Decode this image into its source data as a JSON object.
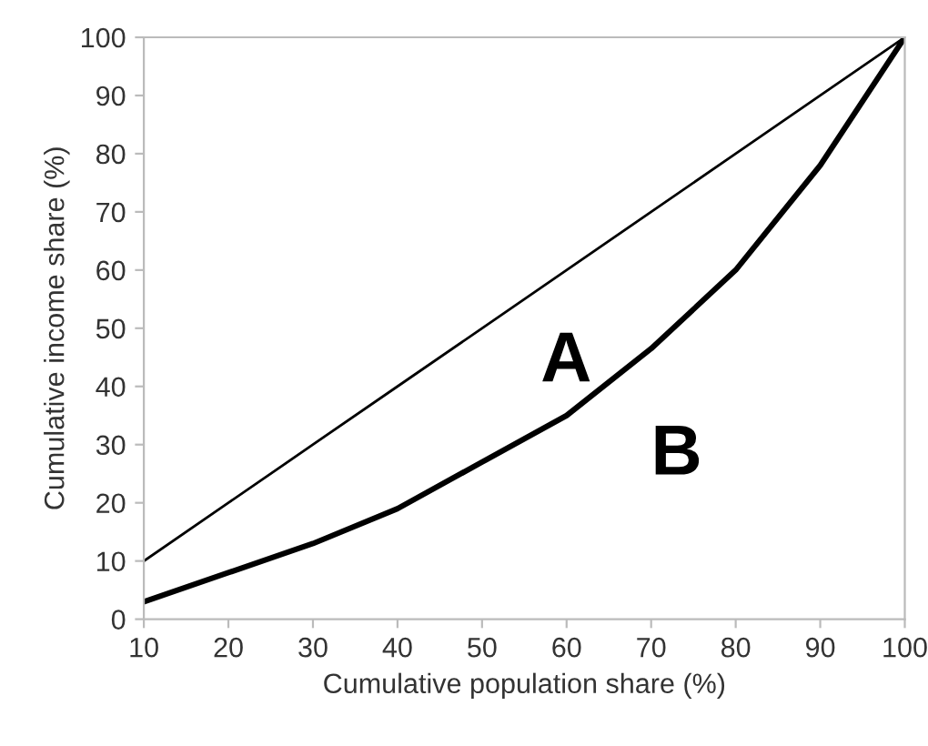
{
  "chart_data": {
    "type": "line",
    "xlabel": "Cumulative population share (%)",
    "ylabel": "Cumulative income share (%)",
    "x": [
      10,
      20,
      30,
      40,
      50,
      60,
      70,
      80,
      90,
      100
    ],
    "series": [
      {
        "color": "#000000",
        "values": [
          10,
          20,
          30,
          40,
          50,
          60,
          70,
          80,
          90,
          100
        ]
      },
      {
        "color": "#000000",
        "values": [
          3,
          8,
          13,
          19,
          27,
          35,
          46.5,
          60,
          78,
          100
        ]
      }
    ],
    "annotations": [
      "A",
      "B"
    ],
    "xlim": [
      10,
      100
    ],
    "ylim": [
      0,
      100
    ],
    "xticks": [
      10,
      20,
      30,
      40,
      50,
      60,
      70,
      80,
      90,
      100
    ],
    "yticks": [
      0,
      10,
      20,
      30,
      40,
      50,
      60,
      70,
      80,
      90,
      100
    ],
    "grid": false,
    "legend": false,
    "marker": "none",
    "line_style": "solid"
  }
}
